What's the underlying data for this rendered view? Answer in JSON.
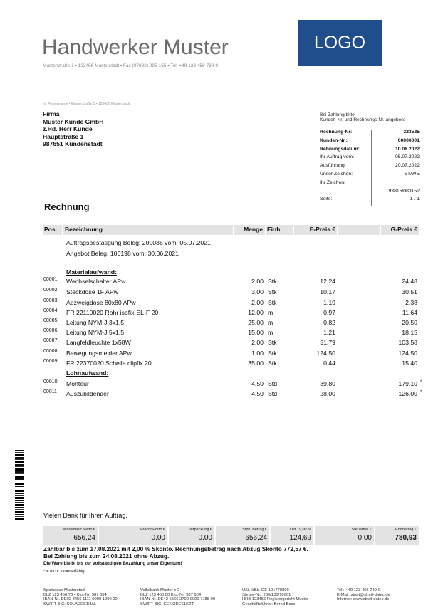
{
  "header": {
    "company": "Handwerker Muster",
    "address_line": "Musterstraße 1 • 123456 Musterstadt • Fax (07832) 995-155 • Tel. +49 123 456 789-0",
    "logo": "LOGO",
    "logo_color": "#1f4e8c"
  },
  "sender_line": "Ihr Firmenname • Musterstraße 1 • 123456 Musterstadt",
  "recipient": [
    "Firma",
    "Muster Kunde GmbH",
    "z.Hd. Herr Kunde",
    "Hauptstraße 1",
    "987651 Kundenstadt"
  ],
  "payment_hint": [
    "Bei Zahlung bitte",
    "Kunden-Nr. und Rechnungs-Nr. angeben:"
  ],
  "meta": [
    {
      "label": "Rechnung-Nr:",
      "value": "323525",
      "bold": true
    },
    {
      "label": "Kunden-Nr.:",
      "value": "00000001",
      "bold": true
    },
    {
      "label": "Rehnungsdatum:",
      "value": "10.08.2022",
      "bold": true
    },
    {
      "label": "Ihr Auftrag vom:",
      "value": "05.07.2022"
    },
    {
      "label": "Ausführung:",
      "value": "20.07.2022"
    },
    {
      "label": "Unser Zeichen:",
      "value": "ST/WE"
    },
    {
      "label": "Ihr Zeichen:",
      "value": ""
    },
    {
      "label": "",
      "value": "93815/083152"
    },
    {
      "label": "Seite:",
      "value": "1 / 1"
    }
  ],
  "doc_title": "Rechnung",
  "table": {
    "headers": {
      "pos": "Pos.",
      "desc": "Bezeichnung",
      "qty": "Menge",
      "unit": "Einh.",
      "ep": "E-Preis €",
      "gp": "G-Preis €"
    },
    "rows": [
      {
        "type": "text",
        "desc": "Auftragsbestätigung Beleg: 200036 vom: 05.07.2021"
      },
      {
        "type": "text",
        "desc": "Angebot Beleg: 100198 vom: 30.06.2021"
      },
      {
        "type": "section",
        "desc": "Materialaufwand:"
      },
      {
        "pos": "00001",
        "desc": "Wechselschalter APw",
        "qty": "2,00",
        "unit": "Stk",
        "ep": "12,24",
        "gp": "24,48"
      },
      {
        "pos": "00002",
        "desc": "Steckdose 1F APw",
        "qty": "3,00",
        "unit": "Stk",
        "ep": "10,17",
        "gp": "30,51"
      },
      {
        "pos": "00003",
        "desc": "Abzweigdose 80x80 APw",
        "qty": "2,00",
        "unit": "Stk",
        "ep": "1,19",
        "gp": "2,38"
      },
      {
        "pos": "00004",
        "desc": "FR  22110020 Rohr isofix-EL-F 20",
        "qty": "12,00",
        "unit": "m",
        "ep": "0,97",
        "gp": "11,64"
      },
      {
        "pos": "00005",
        "desc": "Leitung NYM-J 3x1,5",
        "qty": "25,00",
        "unit": "m",
        "ep": "0,82",
        "gp": "20,50"
      },
      {
        "pos": "00006",
        "desc": "Leitung NYM-J 5x1,5",
        "qty": "15,00",
        "unit": "m",
        "ep": "1,21",
        "gp": "18,15"
      },
      {
        "pos": "00007",
        "desc": "Langfeldleuchte 1x58W",
        "qty": "2,00",
        "unit": "Stk",
        "ep": "51,79",
        "gp": "103,58"
      },
      {
        "pos": "00008",
        "desc": "Bewegungsmelder APw",
        "qty": "1,00",
        "unit": "Stk",
        "ep": "124,50",
        "gp": "124,50"
      },
      {
        "pos": "00009",
        "desc": "FR  22370020 Schelle clipfix 20",
        "qty": "35,00",
        "unit": "Stk",
        "ep": "0,44",
        "gp": "15,40"
      },
      {
        "type": "section",
        "desc": "Lohnaufwand:"
      },
      {
        "pos": "00010",
        "desc": "Monteur",
        "qty": "4,50",
        "unit": "Std",
        "ep": "39,80",
        "gp": "179,10",
        "star": "*"
      },
      {
        "pos": "00011",
        "desc": "Auszubildender",
        "qty": "4,50",
        "unit": "Std",
        "ep": "28,00",
        "gp": "126,00",
        "star": "*"
      }
    ]
  },
  "thanks": "Vielen Dank für Ihren Auftrag.",
  "totals": [
    {
      "label": "Warenwert Netto €",
      "value": "656,24"
    },
    {
      "label": "Fracht/Porto €",
      "value": "0,00"
    },
    {
      "label": "Verpackung €",
      "value": "0,00"
    },
    {
      "label": "Stpfl. Betrag €",
      "value": "656,24"
    },
    {
      "label": "Ust  19,00 %",
      "value": "124,69"
    },
    {
      "label": "Steuerfrei €",
      "value": "0,00"
    },
    {
      "label": "Endbetrag €",
      "value": "780,93"
    }
  ],
  "payment_terms": [
    "Zahlbar bis zum 17.08.2021 mit 2,00 % Skonto. Rechnungsbetrag nach Abzug Skonto 772,57 €.",
    "Bei Zahlung bis zum 24.08.2021 ohne Abzug."
  ],
  "ownership": "Die Ware bleibt bis zur vollständigen Bezahlung unser Eigentum!",
  "footnote": "* = nicht skontierfähig",
  "footer": [
    [
      "Sparkasse Musterstadt",
      "BLZ 123 456 78 • Kto.-Nr. 987 654",
      "IBAN-Nr. DE02 3456 1111 0000 1000 20",
      "SWIFT-BIC: SOLADES1HAL"
    ],
    [
      "Volksbank Muster eG",
      "BLZ 123 456 00 Kto.-Nr. 987 654",
      "IBAN-Nr. DE42 5566 2700 0000 7788 00",
      "SWIFT-BIC: GENODE61KZT"
    ],
    [
      "USt.-IdNr. DE 101778899",
      "Steuer-Nr.: 200/100/10001",
      "HRB 123456 Registergericht Muster",
      "Geschäftsführer: Bernd Boss"
    ],
    [
      "Tel.: +49 123 456 789-0",
      "E-Mail: streit@streit-datec.de",
      "Internet: www.streit-datec.de"
    ]
  ]
}
